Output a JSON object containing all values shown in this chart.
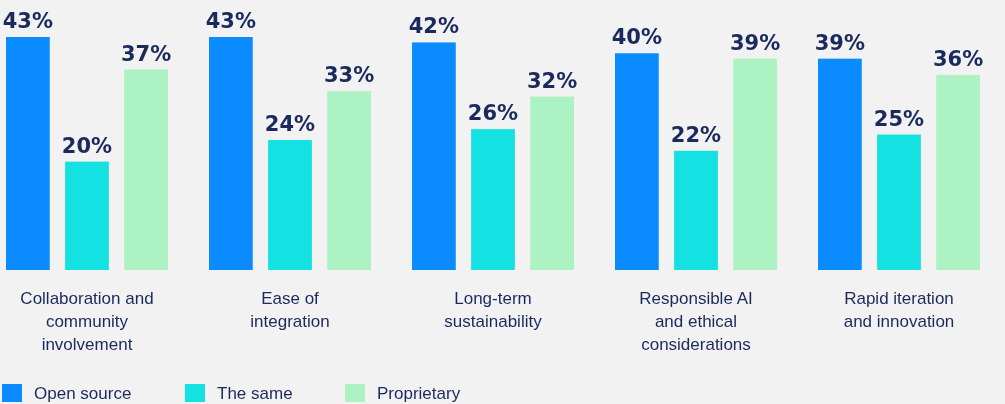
{
  "chart_data": {
    "type": "bar",
    "categories": [
      "Collaboration and community involvement",
      "Ease of integration",
      "Long-term sustainability",
      "Responsible AI and ethical considerations",
      "Rapid iteration and innovation"
    ],
    "series": [
      {
        "name": "Open source",
        "color": "#0a8bff",
        "values": [
          43,
          43,
          42,
          40,
          39
        ],
        "value_labels": [
          "43%",
          "43%",
          "42%",
          "40%",
          "39%"
        ]
      },
      {
        "name": "The same",
        "color": "#14e1e1",
        "values": [
          20,
          24,
          26,
          22,
          25
        ],
        "value_labels": [
          "20%",
          "24%",
          "26%",
          "22%",
          "25%"
        ]
      },
      {
        "name": "Proprietary",
        "color": "#acf2c2",
        "values": [
          37,
          33,
          32,
          39,
          36
        ],
        "value_labels": [
          "37%",
          "33%",
          "32%",
          "39%",
          "36%"
        ]
      }
    ],
    "relative": false,
    "legend": "bottom left"
  }
}
